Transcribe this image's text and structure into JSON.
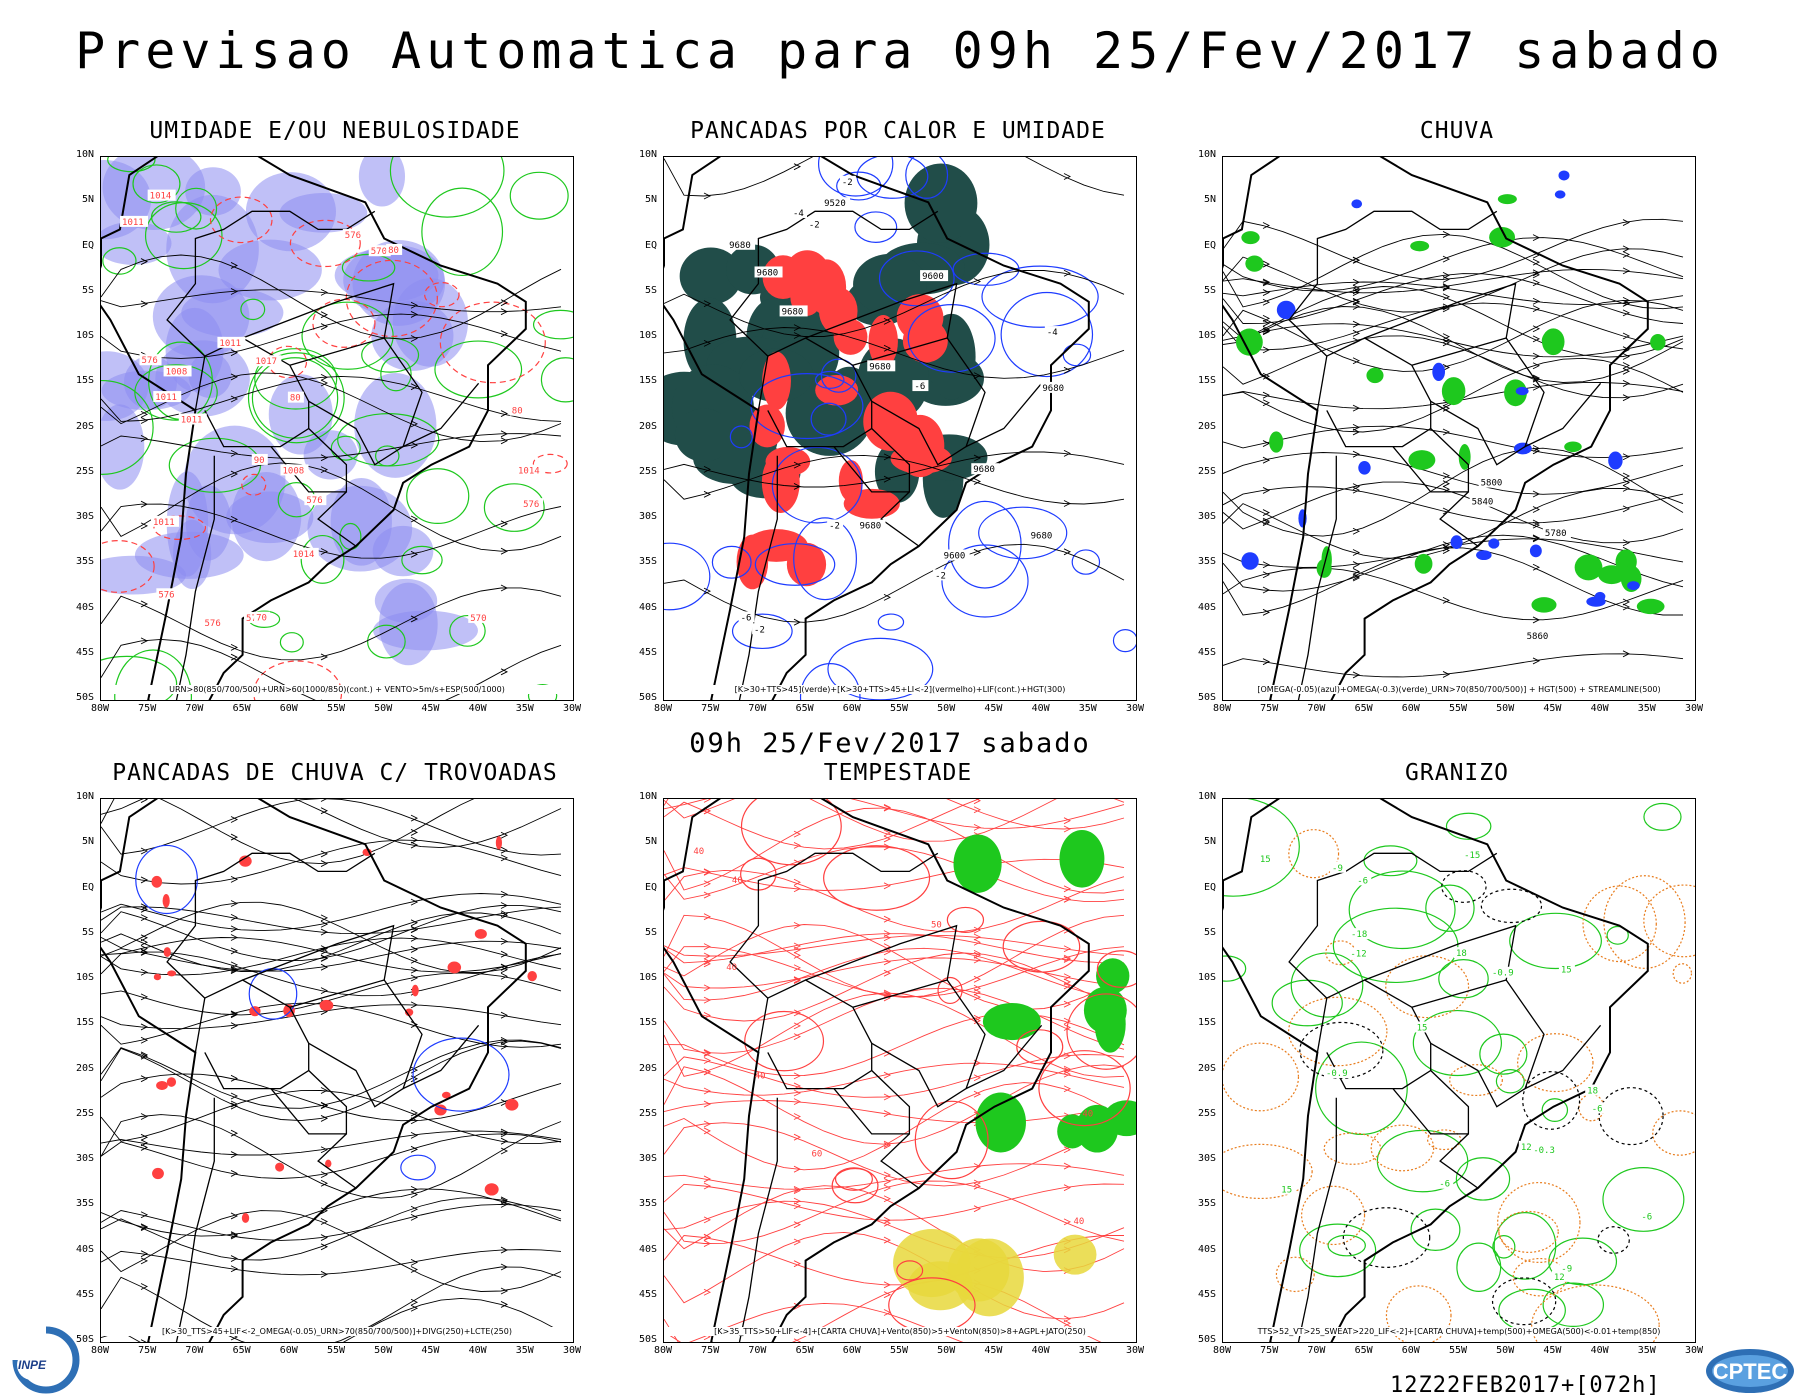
{
  "header": {
    "title": "Previsao Automatica  para 09h 25/Fev/2017 sabado",
    "mid_title": "09h 25/Fev/2017 sabado",
    "run_stamp": "12Z22FEB2017+[072h]"
  },
  "axes": {
    "lat_labels": [
      "10N",
      "5N",
      "EQ",
      "5S",
      "10S",
      "15S",
      "20S",
      "25S",
      "30S",
      "35S",
      "40S",
      "45S",
      "50S"
    ],
    "lon_labels": [
      "80W",
      "75W",
      "70W",
      "65W",
      "60W",
      "55W",
      "50W",
      "45W",
      "40W",
      "35W",
      "30W"
    ]
  },
  "panels": [
    {
      "title": "UMIDADE E/OU NEBULOSIDADE",
      "caption": "URN>80(850/700/500)+URN>60(1000/850)(cont.) + VENTO>5m/s+ESP(500/1000)",
      "labels": [
        "1014",
        "1011",
        "1011",
        "1011",
        "1008",
        "1011",
        "1014",
        "1011",
        "1008",
        "1014",
        "1017",
        "576",
        "576",
        "576",
        "576",
        "576",
        "570",
        "576",
        "570",
        "576",
        "80",
        "80",
        "70",
        "80",
        "90"
      ]
    },
    {
      "title": "PANCADAS POR CALOR E UMIDADE",
      "caption": "[K>30+TTS>45](verde)+[K>30+TTS>45+LI<-2](vermelho)+LIF(cont.)+HGT(300)",
      "labels": [
        "9680",
        "9680",
        "9680",
        "9680",
        "9680",
        "9680",
        "9680",
        "9680",
        "9600",
        "9600",
        "9520",
        "-2",
        "-2",
        "-2",
        "-4",
        "-6",
        "-2",
        "-2",
        "-4",
        "-6"
      ]
    },
    {
      "title": "CHUVA",
      "caption": "[OMEGA(-0.05)(azul)+OMEGA(-0.3)(verde)_URN>70(850/700/500)] + HGT(500) + STREAMLINE(500)",
      "labels": [
        "5860",
        "5800",
        "5780",
        "5840"
      ]
    },
    {
      "title": "PANCADAS DE CHUVA C/ TROVOADAS",
      "caption": "[K>30_TTS>45+LIF<-2_OMEGA(-0.05)_URN>70(850/700/500)]+DIVG(250)+LCTE(250)",
      "labels": []
    },
    {
      "title": "TEMPESTADE",
      "caption": "[K>35_TTS>50+LIF<-4]+[CARTA CHUVA]+Vento(850)>5+VentoN(850)>8+AGPL+JATO(250)",
      "labels": [
        "40",
        "40",
        "40",
        "40",
        "50",
        "40",
        "40",
        "60"
      ]
    },
    {
      "title": "GRANIZO",
      "caption": "TTS>52_VT>25_SWEAT>220_LIF<-2]+[CARTA CHUVA]+temp(500)+OMEGA(500)<-0.01+temp(850)",
      "labels": [
        "-6",
        "-6",
        "-6",
        "-6",
        "-0.9",
        "-0.9",
        "-0.3",
        "-9",
        "-9",
        "-12",
        "-15",
        "-18",
        "15",
        "18",
        "15",
        "12",
        "15",
        "18",
        "12",
        "15"
      ]
    }
  ],
  "logos": {
    "inpe": "INPE",
    "cptec": "CPTEC"
  },
  "colors": {
    "green": "#1ec81e",
    "red": "#ff4040",
    "blue": "#1e3cff",
    "lavender": "#8c8cf0",
    "darkgreen": "#214d49",
    "yellow": "#e8d83c",
    "orange": "#e87d1e"
  }
}
